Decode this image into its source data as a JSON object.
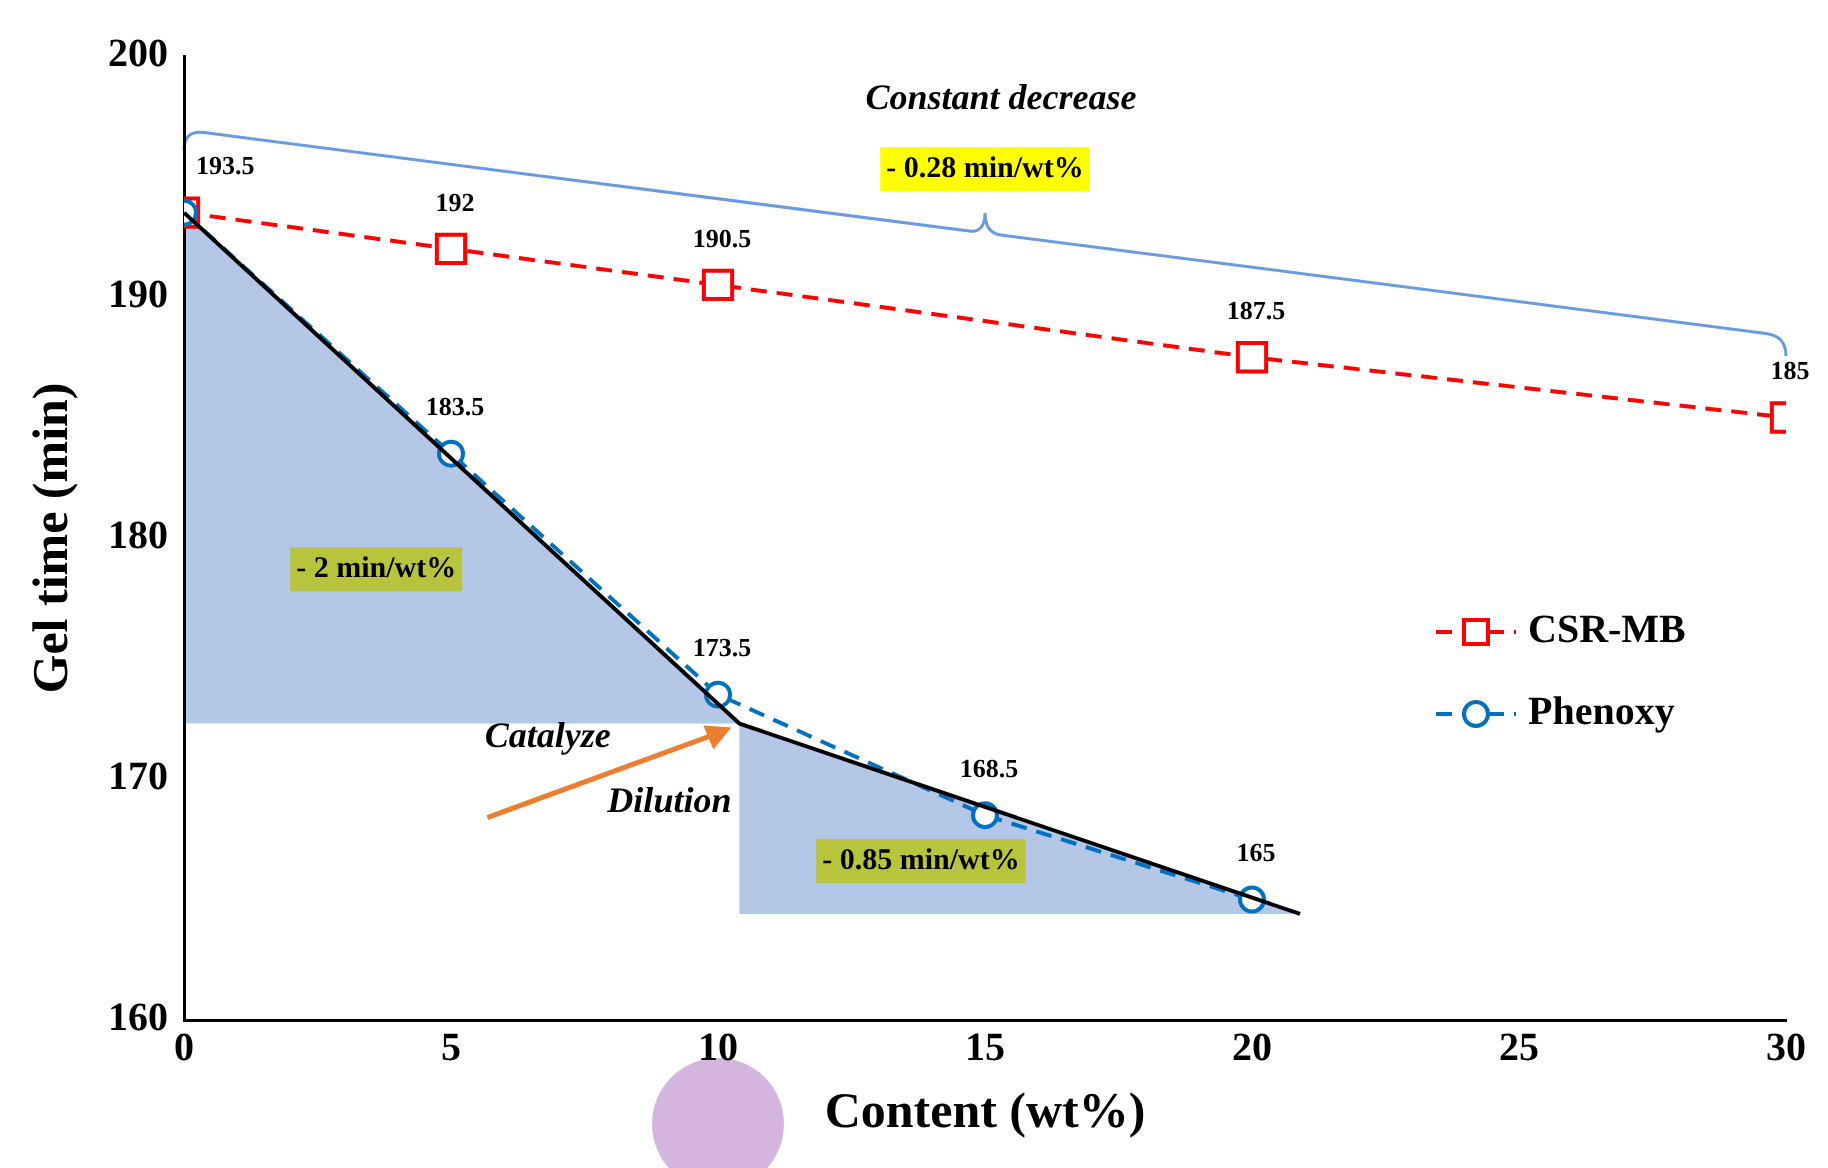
{
  "chart_data": {
    "type": "line",
    "xlabel": "Content (wt%)",
    "ylabel": "Gel time (min)",
    "xlim": [
      0,
      30
    ],
    "xticks": [
      0,
      5,
      10,
      15,
      20,
      25,
      30
    ],
    "ylim": [
      160,
      200
    ],
    "yticks": [
      160,
      170,
      180,
      190,
      200
    ],
    "legend": "right",
    "series": [
      {
        "name": "CSR-MB",
        "color": "#ff0000",
        "marker": "square",
        "line_style": "dashed",
        "x": [
          0,
          5,
          10,
          20,
          30
        ],
        "values": [
          193.5,
          192,
          190.5,
          187.5,
          185
        ],
        "value_labels": [
          "193.5",
          "192",
          "190.5",
          "187.5",
          "185"
        ]
      },
      {
        "name": "Phenoxy",
        "color": "#0070c0",
        "marker": "circle",
        "line_style": "dashed",
        "x": [
          0,
          5,
          10,
          15,
          20
        ],
        "values": [
          193.5,
          183.5,
          173.5,
          168.5,
          165
        ],
        "value_labels": [
          null,
          "183.5",
          "173.5",
          "168.5",
          "165"
        ]
      },
      {
        "color": "#000000",
        "marker": "none",
        "line_style": "solid",
        "x": [
          0,
          10.4,
          20.9
        ],
        "values": [
          193.5,
          172.3,
          164.4
        ]
      }
    ],
    "annotations": [
      "Constant decrease",
      "- 0.28 min/wt%",
      "- 2 min/wt%",
      "- 0.85 min/wt%",
      "Catalyze",
      "Dilution"
    ]
  }
}
